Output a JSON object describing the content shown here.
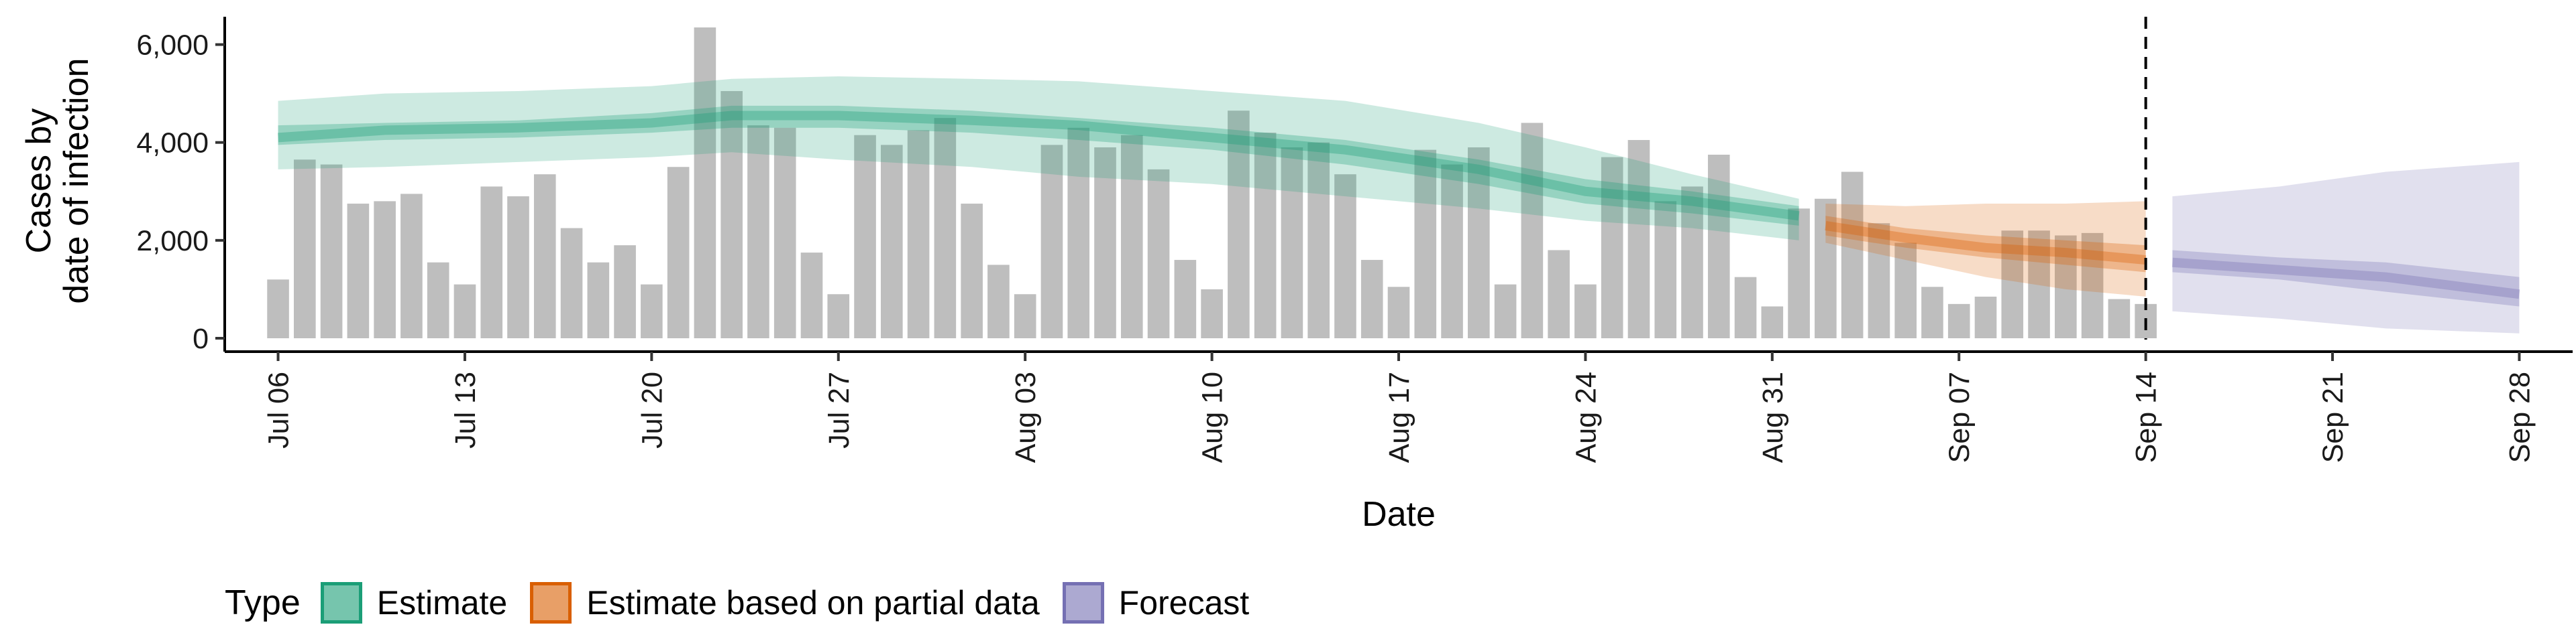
{
  "chart_data": {
    "type": "bar+ribbon",
    "ylabel_lines": [
      "Cases by",
      "date of infection"
    ],
    "xlabel": "Date",
    "ylim": [
      0,
      6500
    ],
    "yticks": [
      0,
      2000,
      4000,
      6000
    ],
    "ytick_labels": [
      "0",
      "2,000",
      "4,000",
      "6,000"
    ],
    "x_start": "2020-07-04",
    "x_end": "2020-09-30",
    "xticks": [
      "2020-07-06",
      "2020-07-13",
      "2020-07-20",
      "2020-07-27",
      "2020-08-03",
      "2020-08-10",
      "2020-08-17",
      "2020-08-24",
      "2020-08-31",
      "2020-09-07",
      "2020-09-14",
      "2020-09-21",
      "2020-09-28"
    ],
    "xtick_labels": [
      "Jul 06",
      "Jul 13",
      "Jul 20",
      "Jul 27",
      "Aug 03",
      "Aug 10",
      "Aug 17",
      "Aug 24",
      "Aug 31",
      "Sep 07",
      "Sep 14",
      "Sep 21",
      "Sep 28"
    ],
    "vline_date": "2020-09-14",
    "bars": {
      "start_date": "2020-07-06",
      "values": [
        1200,
        3650,
        3550,
        2750,
        2800,
        2950,
        1550,
        1100,
        3100,
        2900,
        3350,
        2250,
        1550,
        1900,
        1100,
        3500,
        6350,
        5050,
        4350,
        4300,
        1750,
        900,
        4150,
        3950,
        4250,
        4500,
        2750,
        1500,
        900,
        3950,
        4300,
        3900,
        4150,
        3450,
        1600,
        1000,
        4650,
        4200,
        3900,
        4000,
        3350,
        1600,
        1050,
        3850,
        3550,
        3900,
        1100,
        4400,
        1800,
        1100,
        3700,
        4050,
        2800,
        3100,
        3750,
        1250,
        650,
        2650,
        2850,
        3400,
        2350,
        1950,
        1050,
        700,
        850,
        2200,
        2200,
        2100,
        2150,
        800,
        700
      ],
      "color": "#bebebe"
    },
    "series": [
      {
        "name": "Estimate",
        "color": "#1b9e77",
        "dates": [
          "2020-07-06",
          "2020-07-10",
          "2020-07-15",
          "2020-07-20",
          "2020-07-23",
          "2020-07-27",
          "2020-08-01",
          "2020-08-05",
          "2020-08-10",
          "2020-08-15",
          "2020-08-20",
          "2020-08-24",
          "2020-08-28",
          "2020-09-01"
        ],
        "median": [
          4100,
          4250,
          4300,
          4400,
          4550,
          4550,
          4450,
          4350,
          4100,
          3850,
          3450,
          3000,
          2800,
          2500
        ],
        "lower50": [
          3950,
          4050,
          4100,
          4200,
          4300,
          4300,
          4200,
          4050,
          3850,
          3550,
          3150,
          2750,
          2550,
          2300
        ],
        "upper50": [
          4350,
          4400,
          4450,
          4600,
          4750,
          4750,
          4650,
          4500,
          4300,
          4050,
          3650,
          3250,
          3000,
          2700
        ],
        "lower90": [
          3450,
          3500,
          3600,
          3700,
          3800,
          3650,
          3500,
          3300,
          3150,
          2900,
          2650,
          2400,
          2250,
          2000
        ],
        "upper90": [
          4850,
          5000,
          5050,
          5150,
          5300,
          5350,
          5300,
          5250,
          5050,
          4850,
          4400,
          3900,
          3350,
          2850
        ]
      },
      {
        "name": "Estimate based on partial data",
        "color": "#d95f02",
        "dates": [
          "2020-09-02",
          "2020-09-05",
          "2020-09-08",
          "2020-09-11",
          "2020-09-14"
        ],
        "median": [
          2300,
          2050,
          1850,
          1750,
          1600
        ],
        "lower50": [
          2100,
          1850,
          1650,
          1500,
          1350
        ],
        "upper50": [
          2500,
          2250,
          2100,
          2000,
          1900
        ],
        "lower90": [
          1950,
          1600,
          1250,
          1000,
          850
        ],
        "upper90": [
          2750,
          2700,
          2750,
          2750,
          2800
        ]
      },
      {
        "name": "Forecast",
        "color": "#7570b3",
        "dates": [
          "2020-09-15",
          "2020-09-19",
          "2020-09-23",
          "2020-09-28"
        ],
        "median": [
          1550,
          1400,
          1250,
          900
        ],
        "lower50": [
          1350,
          1200,
          950,
          650
        ],
        "upper50": [
          1800,
          1650,
          1550,
          1250
        ],
        "lower90": [
          550,
          400,
          200,
          100
        ],
        "upper90": [
          2900,
          3100,
          3400,
          3600
        ]
      }
    ],
    "legend_position": "bottom"
  },
  "legend": {
    "title": "Type",
    "items": [
      {
        "label": "Estimate",
        "color": "#1b9e77"
      },
      {
        "label": "Estimate based on partial data",
        "color": "#d95f02"
      },
      {
        "label": "Forecast",
        "color": "#7570b3"
      }
    ]
  }
}
